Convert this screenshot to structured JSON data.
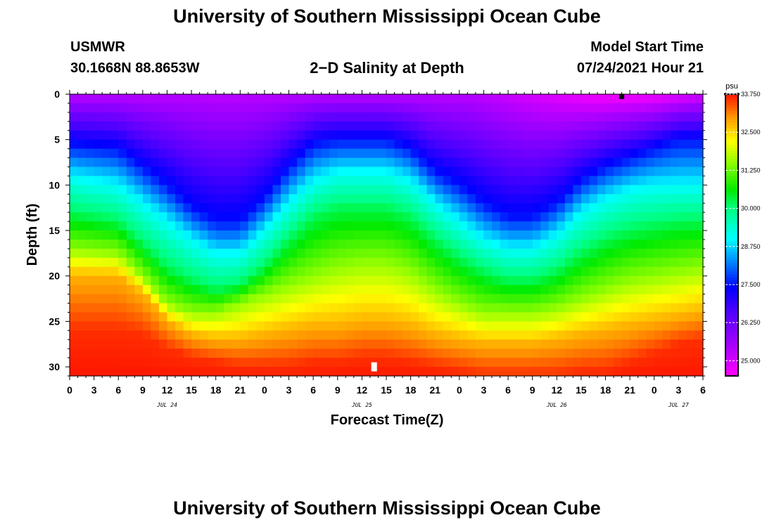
{
  "header": {
    "title": "University of Southern Mississippi Ocean Cube",
    "station": "USMWR",
    "coords": "30.1668N  88.8653W",
    "plot_title": "2−D Salinity at Depth",
    "model_start_label": "Model Start Time",
    "model_start_value": "07/24/2021 Hour 21"
  },
  "footer": {
    "title": "University of Southern Mississippi Ocean Cube"
  },
  "chart_data": {
    "type": "heatmap",
    "title": "2−D Salinity at Depth",
    "xlabel": "Forecast Time(Z)",
    "ylabel": "Depth (ft)",
    "xlim": [
      0,
      78
    ],
    "ylim": [
      0,
      31
    ],
    "y_inverted": true,
    "x_ticks": [
      0,
      3,
      6,
      9,
      12,
      15,
      18,
      21,
      24,
      27,
      30,
      33,
      36,
      39,
      42,
      45,
      48,
      51,
      54,
      57,
      60,
      63,
      66,
      69,
      72,
      75,
      78
    ],
    "x_tick_labels": [
      "0",
      "3",
      "6",
      "9",
      "12",
      "15",
      "18",
      "21",
      "0",
      "3",
      "6",
      "9",
      "12",
      "15",
      "18",
      "21",
      "0",
      "3",
      "6",
      "9",
      "12",
      "15",
      "18",
      "21",
      "0",
      "3",
      "6"
    ],
    "day_labels": [
      {
        "x": 12,
        "label": "JUL 24"
      },
      {
        "x": 36,
        "label": "JUL 25"
      },
      {
        "x": 60,
        "label": "JUL 26"
      },
      {
        "x": 75,
        "label": "JUL 27"
      }
    ],
    "y_ticks": [
      0,
      5,
      10,
      15,
      20,
      25,
      30
    ],
    "colorbar": {
      "unit": "psu",
      "min": 24.5,
      "max": 33.75,
      "tick_labels": [
        "33.750",
        "32.500",
        "31.250",
        "30.000",
        "28.750",
        "27.500",
        "26.250",
        "25.000"
      ],
      "ticks": [
        33.75,
        32.5,
        31.25,
        30.0,
        28.75,
        27.5,
        26.25,
        25.0
      ]
    },
    "isohaline_depths_ft": {
      "x": [
        0,
        6,
        9,
        12,
        15,
        18,
        21,
        24,
        27,
        30,
        33,
        36,
        39,
        42,
        45,
        48,
        51,
        54,
        57,
        60,
        63,
        66,
        69,
        72,
        75,
        78
      ],
      "s27.5": [
        5.5,
        6,
        8,
        10,
        12.5,
        14,
        14,
        11.5,
        8,
        5.5,
        5,
        5,
        5,
        6,
        8.5,
        10,
        12,
        13.5,
        13.5,
        12,
        9.5,
        8,
        7,
        6,
        5,
        5
      ],
      "s29.0": [
        9,
        10,
        12,
        14,
        16,
        17.5,
        17.5,
        15,
        12,
        9.5,
        8.5,
        8.5,
        8.5,
        9.5,
        12,
        14,
        16,
        17,
        17,
        15.5,
        13,
        11.5,
        10.5,
        10,
        10,
        10
      ],
      "s30.2": [
        13,
        14,
        16.5,
        19,
        20.5,
        21.5,
        21,
        19,
        16,
        13.5,
        12.5,
        12.5,
        12.5,
        13.5,
        16,
        18,
        19.5,
        20.5,
        20.5,
        19.5,
        17.5,
        16,
        15,
        14.5,
        14,
        14
      ],
      "s31.5": [
        17,
        17.5,
        20,
        23,
        24,
        24,
        23,
        22,
        21,
        20,
        19,
        18.5,
        18.5,
        19.5,
        21.5,
        23,
        24,
        24,
        24,
        23.5,
        22.5,
        21.5,
        20.5,
        20,
        19.5,
        19
      ],
      "s32.8": [
        20,
        20,
        22,
        25,
        26.5,
        27,
        27,
        26.5,
        26,
        25.5,
        25.5,
        25,
        25,
        25.5,
        26.5,
        27,
        27.5,
        27.5,
        27.5,
        27,
        26.5,
        26,
        25.5,
        25,
        24.5,
        24
      ],
      "s33.6": [
        26,
        26,
        26.5,
        28,
        29,
        29.5,
        30,
        30,
        30,
        29.5,
        29.5,
        29,
        29,
        29.5,
        30,
        30.5,
        31,
        31,
        31,
        31,
        30.5,
        30.5,
        29.5,
        28.5,
        27.5,
        27
      ]
    },
    "surface_min_salinity": 24.6,
    "markers": [
      {
        "x": 68,
        "depth": 0.2,
        "color": "#000000"
      },
      {
        "x": 37.5,
        "depth": 30,
        "color": "#ffffff"
      }
    ]
  }
}
